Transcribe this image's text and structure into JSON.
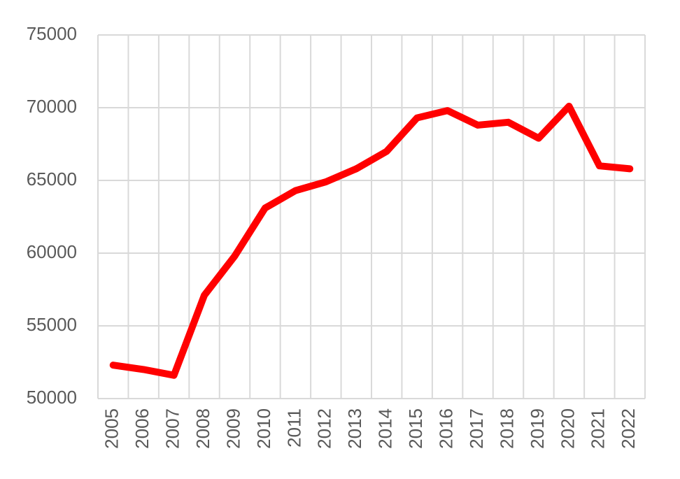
{
  "chart_data": {
    "type": "line",
    "categories": [
      "2005",
      "2006",
      "2007",
      "2008",
      "2009",
      "2010",
      "2011",
      "2012",
      "2013",
      "2014",
      "2015",
      "2016",
      "2017",
      "2018",
      "2019",
      "2020",
      "2021",
      "2022"
    ],
    "series": [
      {
        "color": "#ff0000",
        "values": [
          52300,
          52000,
          51600,
          57100,
          59800,
          63100,
          64300,
          64900,
          65800,
          67000,
          69300,
          69800,
          68800,
          69000,
          67900,
          70100,
          66000,
          65800
        ]
      }
    ],
    "ylim": [
      50000,
      75000
    ],
    "yticks": [
      50000,
      55000,
      60000,
      65000,
      70000,
      75000
    ],
    "grid": true
  }
}
